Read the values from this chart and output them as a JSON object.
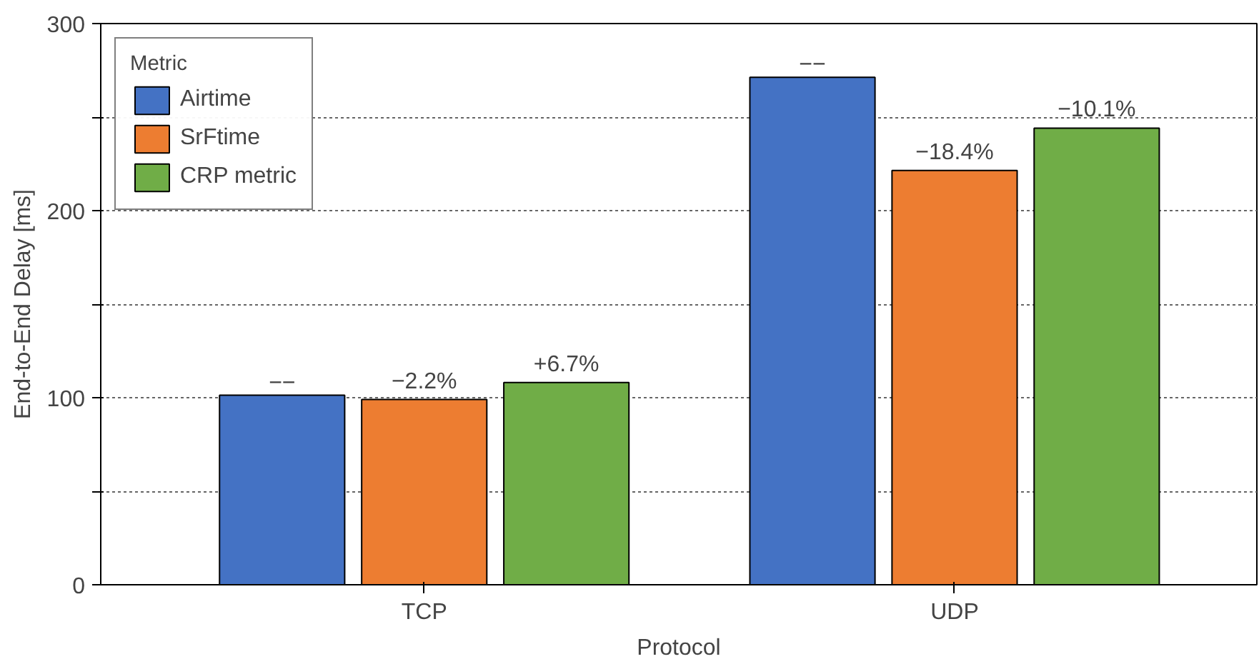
{
  "chart_data": {
    "type": "bar",
    "xlabel": "Protocol",
    "ylabel": "End-to-End Delay [ms]",
    "legend_title": "Metric",
    "categories": [
      "TCP",
      "UDP"
    ],
    "series": [
      {
        "name": "Airtime",
        "color": "#4472c4",
        "values": [
          101.3,
          271.3
        ]
      },
      {
        "name": "SrFtime",
        "color": "#ed7d31",
        "values": [
          99.0,
          221.5
        ]
      },
      {
        "name": "CRP metric",
        "color": "#70ad47",
        "values": [
          108.1,
          244.1
        ]
      }
    ],
    "annotations": [
      "−−",
      "−2.2%",
      "+6.7%",
      "−−",
      "−18.4%",
      "−10.1%"
    ],
    "ylim": [
      0,
      300
    ],
    "yticks": [
      0,
      {
        "value": 50,
        "label": null
      },
      100,
      {
        "value": 150,
        "label": null
      },
      200,
      {
        "value": 250,
        "label": null
      },
      300
    ],
    "grid": "y",
    "legend": "top left"
  }
}
